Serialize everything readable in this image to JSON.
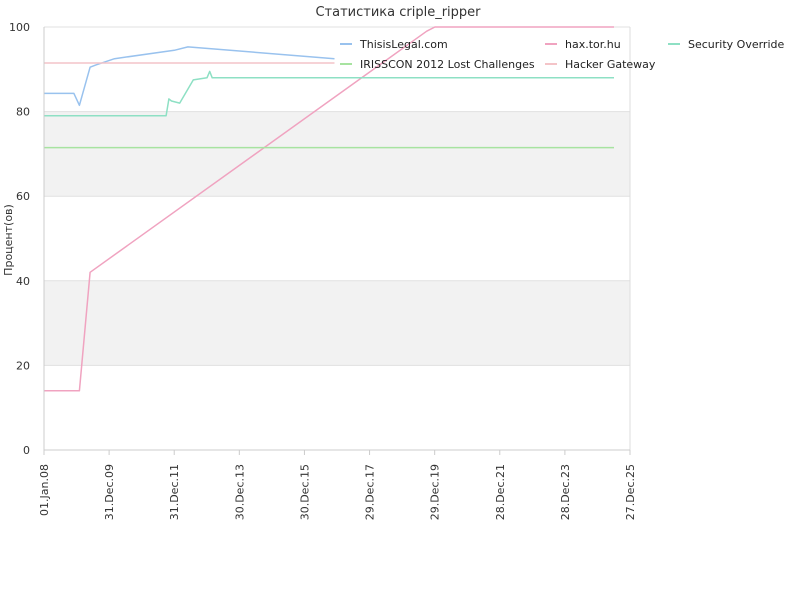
{
  "chart_data": {
    "type": "line",
    "title": "Статистика criple_ripper",
    "xlabel": "",
    "ylabel": "Процент(ов)",
    "ylim": [
      0,
      100
    ],
    "yticks": [
      0,
      20,
      40,
      60,
      80,
      100
    ],
    "xlim": [
      "2008-01-01",
      "2025-12-27"
    ],
    "xticks": [
      {
        "date": "2008-01-01",
        "label": "01.Jan.08"
      },
      {
        "date": "2009-12-31",
        "label": "31.Dec.09"
      },
      {
        "date": "2011-12-31",
        "label": "31.Dec.11"
      },
      {
        "date": "2013-12-30",
        "label": "30.Dec.13"
      },
      {
        "date": "2015-12-30",
        "label": "30.Dec.15"
      },
      {
        "date": "2017-12-29",
        "label": "29.Dec.17"
      },
      {
        "date": "2019-12-29",
        "label": "29.Dec.19"
      },
      {
        "date": "2021-12-28",
        "label": "28.Dec.21"
      },
      {
        "date": "2023-12-28",
        "label": "28.Dec.23"
      },
      {
        "date": "2025-12-27",
        "label": "27.Dec.25"
      }
    ],
    "grid": true,
    "legend_position": "top-right",
    "series": [
      {
        "name": "ThisisLegal.com",
        "color": "#99c2ee",
        "points": [
          [
            "2008-01-01",
            84.3
          ],
          [
            "2008-12-01",
            84.3
          ],
          [
            "2009-02-01",
            81.5
          ],
          [
            "2009-06-01",
            90.5
          ],
          [
            "2009-08-01",
            91.0
          ],
          [
            "2010-03-01",
            92.5
          ],
          [
            "2012-01-01",
            94.5
          ],
          [
            "2012-06-01",
            95.3
          ],
          [
            "2016-12-01",
            92.5
          ]
        ]
      },
      {
        "name": "hax.tor.hu",
        "color": "#f0a3c0",
        "points": [
          [
            "2008-01-01",
            14
          ],
          [
            "2009-02-01",
            14
          ],
          [
            "2009-06-01",
            42
          ],
          [
            "2019-10-01",
            99
          ],
          [
            "2020-01-01",
            100
          ],
          [
            "2025-07-01",
            100
          ]
        ]
      },
      {
        "name": "Security Override",
        "color": "#8ee0c4",
        "points": [
          [
            "2008-01-01",
            79
          ],
          [
            "2011-10-01",
            79
          ],
          [
            "2011-11-01",
            83
          ],
          [
            "2011-12-01",
            82.5
          ],
          [
            "2012-03-01",
            82
          ],
          [
            "2012-08-01",
            87.5
          ],
          [
            "2013-01-01",
            88
          ],
          [
            "2013-02-01",
            89.5
          ],
          [
            "2013-03-01",
            88
          ],
          [
            "2025-07-01",
            88
          ]
        ]
      },
      {
        "name": "IRISSCON 2012 Lost Challenges",
        "color": "#a7e3a0",
        "points": [
          [
            "2008-01-01",
            71.5
          ],
          [
            "2025-07-01",
            71.5
          ]
        ]
      },
      {
        "name": "Hacker Gateway",
        "color": "#f4c4c8",
        "points": [
          [
            "2008-01-01",
            91.5
          ],
          [
            "2016-12-01",
            91.5
          ]
        ]
      }
    ]
  }
}
